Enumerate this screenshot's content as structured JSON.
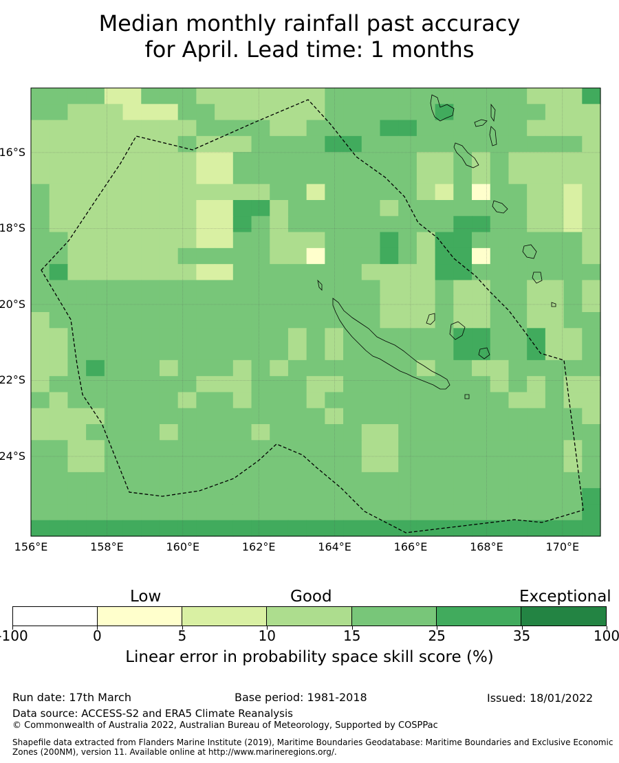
{
  "title": {
    "line1": "Median monthly rainfall past accuracy",
    "line2": "for April. Lead time: 1 months"
  },
  "map": {
    "lon_labels": [
      "156°E",
      "158°E",
      "160°E",
      "162°E",
      "164°E",
      "166°E",
      "168°E",
      "170°E"
    ],
    "lat_labels": [
      "16°S",
      "18°S",
      "20°S",
      "22°S",
      "24°S"
    ],
    "lon_range": [
      156,
      171
    ],
    "lat_range": [
      -14.3,
      -26.1
    ],
    "grid_rows": [
      "4444224443333333444444444443335",
      "4433322244333333444444544444333",
      "3333333334444334444554444443333",
      "3333333343334444554444444444443",
      "3333333332244444444443343433333",
      "3333333332244444444443343433333",
      "4333333333333442444443241443323",
      "4333333332255344444344444443323",
      "4333333332254344444444455443323",
      "4433333332244333444543554444443",
      "4433333344444331444543551444443",
      "4533333332244444443333554444444",
      "4444444444444444444333433443343",
      "4444444444444444444333433443343",
      "3444444444444444444333433443344",
      "3344444444444434344444455445334",
      "3344444444444434344444455445334",
      "3345444344434344444443443344444",
      "3444444443334443344444444343433",
      "4344444434434443444444444433433",
      "3333444444444444344444444444443",
      "3334444344443444443344444444444",
      "4433444444444444443344444444434",
      "4433444444444444443344444444434",
      "4444444444444444444444444444444",
      "4444444444444444444444444444445",
      "4444444444444444444444444444445",
      "5555555555555555555555555555555"
    ],
    "boundary_label": ""
  },
  "legend": {
    "categories": [
      "Low",
      "Good",
      "Exceptional"
    ],
    "ticks": [
      "-100",
      "0",
      "5",
      "10",
      "15",
      "25",
      "35",
      "100"
    ],
    "colors": [
      "#ffffff",
      "#ffffcc",
      "#d9f0a3",
      "#addd8e",
      "#78c679",
      "#41ab5d",
      "#238443"
    ],
    "label": "Linear error in probability space skill score (%)"
  },
  "footer": {
    "run_date": "Run date: 17th March",
    "base_period": "Base period: 1981-2018",
    "issued": "Issued: 18/01/2022",
    "data_source": "Data source: ACCESS-S2 and ERA5 Climate Reanalysis",
    "copyright": "© Commonwealth of Australia 2022, Australian Bureau of Meteorology, Supported by COSPPac",
    "shapefile": "Shapefile data extracted from Flanders Marine Institute (2019), Maritime Boundaries Geodatabase: Maritime Boundaries and Exclusive Economic Zones (200NM), version 11. Available online at http://www.marineregions.org/."
  }
}
